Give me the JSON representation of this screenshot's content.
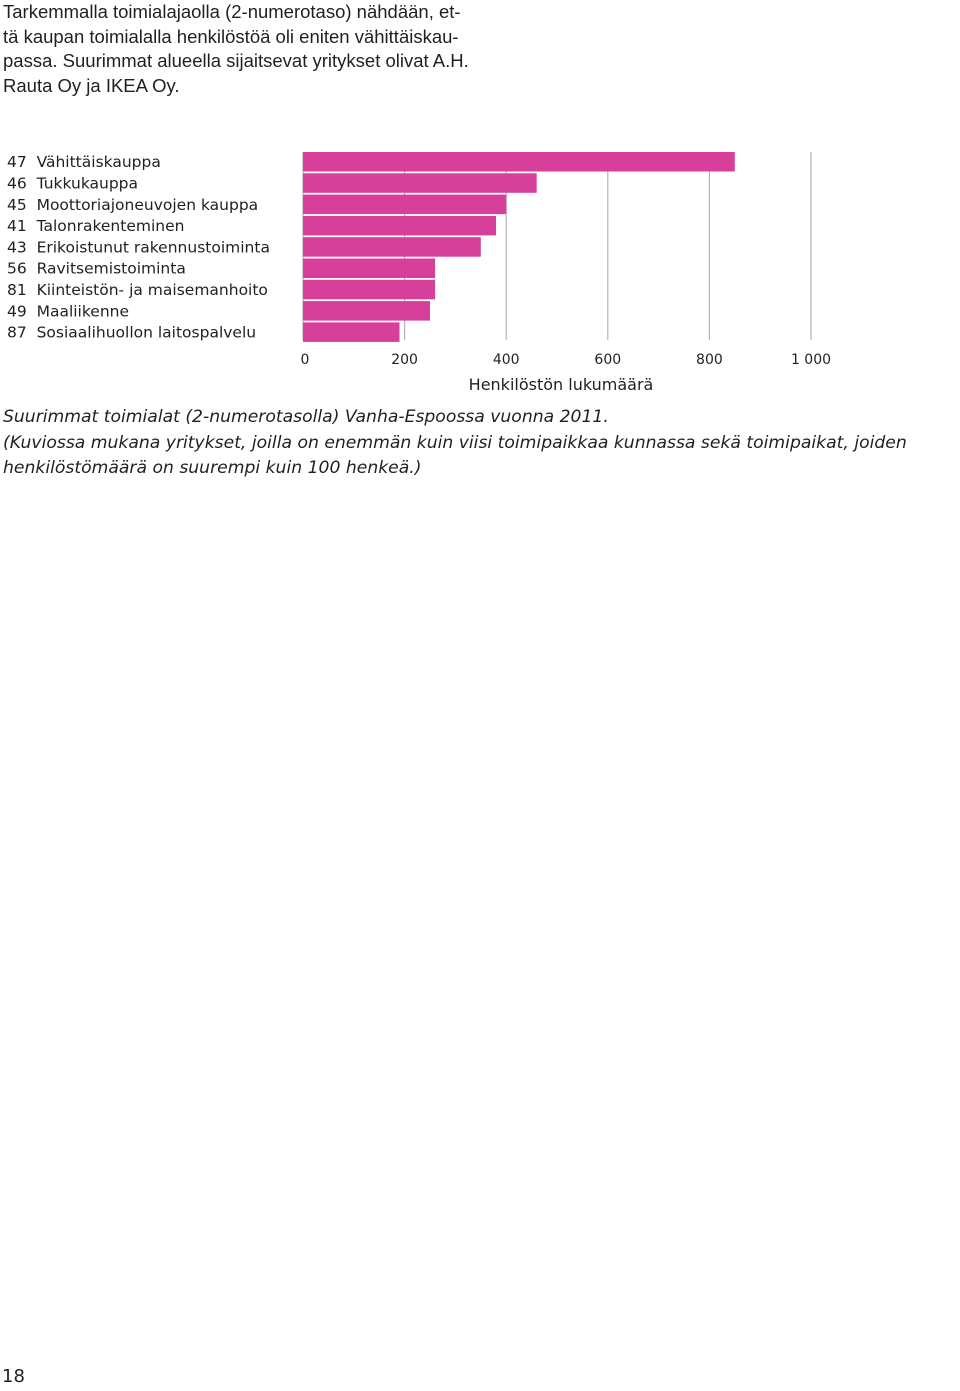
{
  "intro": {
    "lines": [
      "Tarkemmalla toimialajaolla (2-numerotaso) nähdään, et-",
      "tä kaupan toimialalla henkilöstöä oli eniten vähittäiskau-",
      "passa. Suurimmat alueella sijaitsevat yritykset olivat A.H.",
      "Rauta Oy ja IKEA Oy."
    ]
  },
  "chart_data": {
    "type": "bar",
    "orientation": "horizontal",
    "categories": [
      "47  Vähittäiskauppa",
      "46  Tukkukauppa",
      "45  Moottoriajoneuvojen kauppa",
      "41  Talonrakenteminen",
      "43  Erikoistunut rakennustoiminta",
      "56  Ravitsemistoiminta",
      "81  Kiinteistön- ja maisemanhoito",
      "49  Maaliikenne",
      "87  Sosiaalihuollon laitospalvelu"
    ],
    "values": [
      850,
      460,
      400,
      380,
      350,
      260,
      260,
      250,
      190
    ],
    "xlim": [
      0,
      1000
    ],
    "xticks": [
      "0",
      "200",
      "400",
      "600",
      "800",
      "1 000"
    ],
    "xlabel": "Henkilöstön lukumäärä",
    "bar_color": "#d6409a",
    "grid": "vertical"
  },
  "caption": {
    "lines": [
      "Suurimmat toimialat (2-numerotasolla) Vanha-Espoossa vuonna 2011.",
      "(Kuviossa mukana yritykset, joilla on enemmän kuin viisi toimipaikkaa kunnassa sekä toimipaikat, joiden",
      "henkilöstömäärä on suurempi kuin 100 henkeä.)"
    ]
  },
  "page_number": "18"
}
